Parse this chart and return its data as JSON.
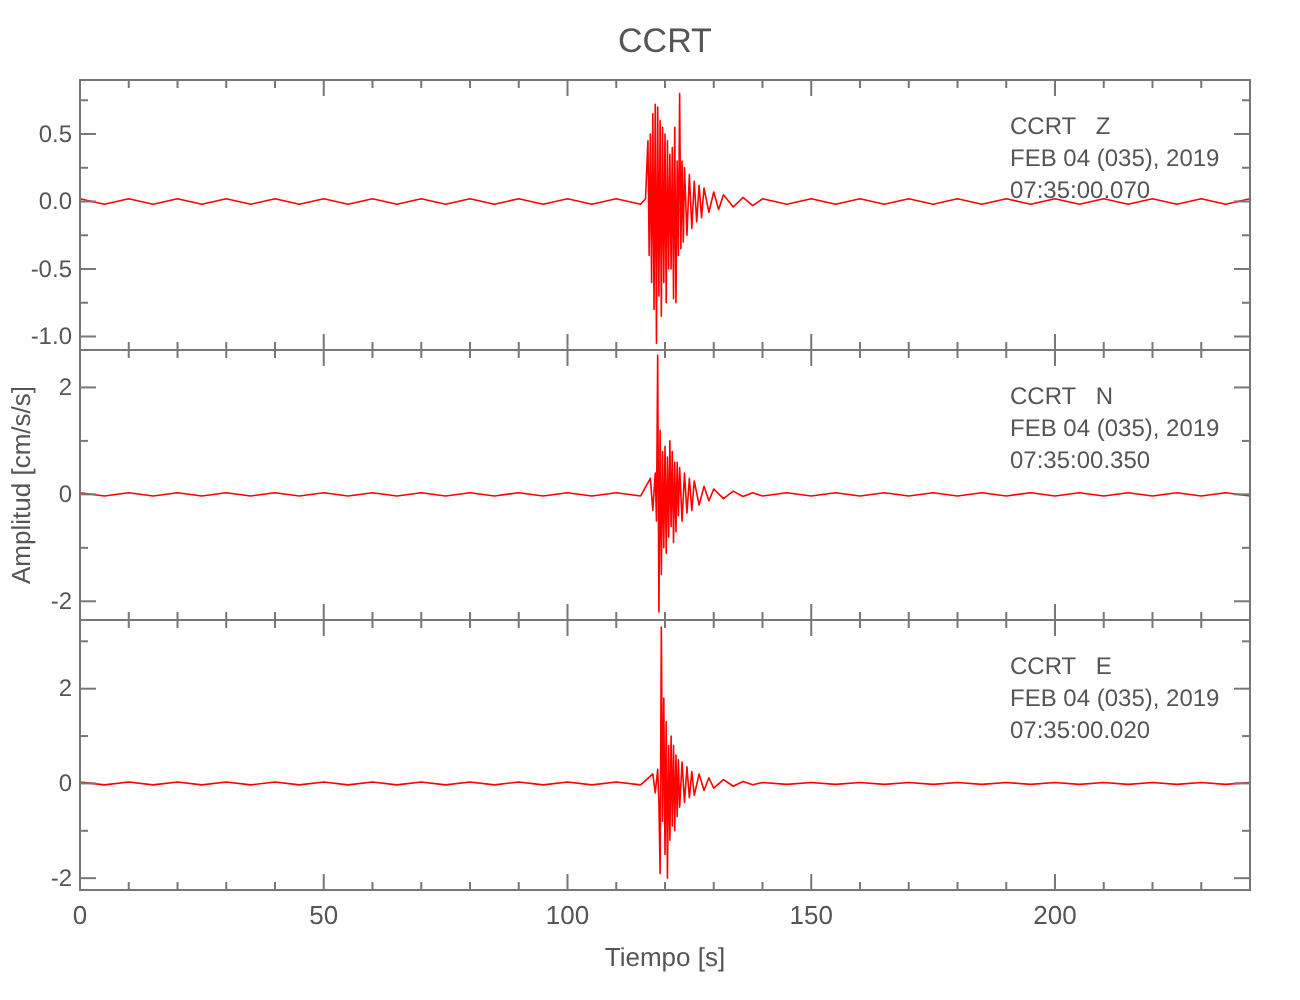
{
  "chart_data": [
    {
      "type": "line",
      "title": "CCRT",
      "annotations": [
        "CCRT   Z",
        "FEB 04 (035), 2019",
        "07:35:00.070"
      ],
      "xlim": [
        0,
        240
      ],
      "xticks": [
        0,
        {
          "value": 10,
          "label": null
        },
        {
          "value": 20,
          "label": null
        },
        {
          "value": 30,
          "label": null
        },
        {
          "value": 40,
          "label": null
        },
        50,
        {
          "value": 60,
          "label": null
        },
        {
          "value": 70,
          "label": null
        },
        {
          "value": 80,
          "label": null
        },
        {
          "value": 90,
          "label": null
        },
        100,
        {
          "value": 110,
          "label": null
        },
        {
          "value": 120,
          "label": null
        },
        {
          "value": 130,
          "label": null
        },
        {
          "value": 140,
          "label": null
        },
        150,
        {
          "value": 160,
          "label": null
        },
        {
          "value": 170,
          "label": null
        },
        {
          "value": 180,
          "label": null
        },
        {
          "value": 190,
          "label": null
        },
        200,
        {
          "value": 210,
          "label": null
        },
        {
          "value": 220,
          "label": null
        },
        {
          "value": 230,
          "label": null
        }
      ],
      "ylim": [
        -1.1,
        0.9
      ],
      "yticks": [
        {
          "value": -1.0,
          "label": "-1.0"
        },
        {
          "value": -0.75,
          "label": null
        },
        {
          "value": -0.5,
          "label": "-0.5"
        },
        {
          "value": -0.25,
          "label": null
        },
        {
          "value": 0,
          "label": "0.0"
        },
        {
          "value": 0.25,
          "label": null
        },
        {
          "value": 0.5,
          "label": "0.5"
        },
        {
          "value": 0.75,
          "label": null
        }
      ],
      "tick_labels": "y",
      "grid": false,
      "line_style": "solid",
      "marker": "none",
      "series": [
        {
          "color": "#ff0000",
          "x": [
            0,
            5,
            10,
            15,
            20,
            25,
            30,
            35,
            40,
            45,
            50,
            55,
            60,
            65,
            70,
            75,
            80,
            85,
            90,
            95,
            100,
            105,
            110,
            115,
            116,
            116.5,
            116.75,
            117,
            117.25,
            117.5,
            117.75,
            118,
            118.25,
            118.5,
            118.75,
            119,
            119.25,
            119.5,
            119.75,
            120,
            120.25,
            120.5,
            120.75,
            121,
            121.25,
            121.5,
            121.75,
            122,
            122.25,
            122.5,
            122.75,
            123,
            123.25,
            123.5,
            123.75,
            124,
            124.5,
            125,
            125.5,
            126,
            126.5,
            127,
            127.5,
            128,
            129,
            130,
            131,
            132,
            134,
            136,
            138,
            140,
            145,
            150,
            155,
            160,
            165,
            170,
            175,
            180,
            185,
            190,
            195,
            200,
            205,
            210,
            215,
            220,
            225,
            230,
            235,
            240
          ],
          "values": [
            0.02,
            -0.02,
            0.02,
            -0.02,
            0.02,
            -0.02,
            0.02,
            -0.02,
            0.02,
            -0.02,
            0.02,
            -0.02,
            0.02,
            -0.02,
            0.02,
            -0.02,
            0.02,
            -0.02,
            0.02,
            -0.02,
            0.02,
            -0.02,
            0.02,
            -0.02,
            0.02,
            0.45,
            -0.4,
            0.5,
            -0.6,
            0.65,
            -0.8,
            0.72,
            -1.05,
            0.7,
            -0.7,
            0.6,
            -0.85,
            0.55,
            -0.6,
            0.5,
            -0.75,
            0.45,
            -0.5,
            0.35,
            -0.5,
            0.4,
            -0.72,
            0.55,
            -0.75,
            0.3,
            -0.4,
            0.8,
            -0.35,
            0.3,
            -0.3,
            0.25,
            -0.25,
            0.2,
            -0.2,
            0.15,
            -0.15,
            0.12,
            -0.12,
            0.1,
            -0.08,
            0.07,
            -0.06,
            0.05,
            -0.04,
            0.03,
            -0.03,
            0.02,
            -0.02,
            0.02,
            -0.02,
            0.02,
            -0.02,
            0.02,
            -0.02,
            0.02,
            -0.02,
            0.02,
            -0.02,
            0.02,
            -0.02,
            0.02,
            -0.02,
            0.02,
            -0.02,
            0.02,
            -0.02,
            0.02
          ]
        }
      ]
    },
    {
      "type": "line",
      "ylabel": "Amplitud [cm/s/s]",
      "annotations": [
        "CCRT   N",
        "FEB 04 (035), 2019",
        "07:35:00.350"
      ],
      "xlim": [
        0,
        240
      ],
      "xticks": [
        0,
        {
          "value": 10,
          "label": null
        },
        {
          "value": 20,
          "label": null
        },
        {
          "value": 30,
          "label": null
        },
        {
          "value": 40,
          "label": null
        },
        50,
        {
          "value": 60,
          "label": null
        },
        {
          "value": 70,
          "label": null
        },
        {
          "value": 80,
          "label": null
        },
        {
          "value": 90,
          "label": null
        },
        100,
        {
          "value": 110,
          "label": null
        },
        {
          "value": 120,
          "label": null
        },
        {
          "value": 130,
          "label": null
        },
        {
          "value": 140,
          "label": null
        },
        150,
        {
          "value": 160,
          "label": null
        },
        {
          "value": 170,
          "label": null
        },
        {
          "value": 180,
          "label": null
        },
        {
          "value": 190,
          "label": null
        },
        200,
        {
          "value": 210,
          "label": null
        },
        {
          "value": 220,
          "label": null
        },
        {
          "value": 230,
          "label": null
        }
      ],
      "ylim": [
        -2.35,
        2.7
      ],
      "yticks": [
        -2,
        {
          "value": -1,
          "label": null
        },
        0,
        {
          "value": 1,
          "label": null
        },
        2
      ],
      "tick_labels": "y",
      "grid": false,
      "line_style": "solid",
      "marker": "none",
      "series": [
        {
          "color": "#ff0000",
          "x": [
            0,
            5,
            10,
            15,
            20,
            25,
            30,
            35,
            40,
            45,
            50,
            55,
            60,
            65,
            70,
            75,
            80,
            85,
            90,
            95,
            100,
            105,
            110,
            115,
            117,
            117.5,
            118,
            118.25,
            118.5,
            118.75,
            119,
            119.25,
            119.5,
            119.75,
            120,
            120.25,
            120.5,
            120.75,
            121,
            121.25,
            121.5,
            121.75,
            122,
            122.25,
            122.5,
            122.75,
            123,
            123.5,
            124,
            124.5,
            125,
            125.5,
            126,
            127,
            128,
            129,
            130,
            132,
            134,
            136,
            138,
            140,
            145,
            150,
            155,
            160,
            165,
            170,
            175,
            180,
            185,
            190,
            195,
            200,
            205,
            210,
            215,
            220,
            225,
            230,
            235,
            240
          ],
          "values": [
            0.03,
            -0.03,
            0.03,
            -0.03,
            0.03,
            -0.03,
            0.03,
            -0.03,
            0.03,
            -0.03,
            0.03,
            -0.03,
            0.03,
            -0.03,
            0.03,
            -0.03,
            0.03,
            -0.03,
            0.03,
            -0.03,
            0.03,
            -0.03,
            0.03,
            -0.03,
            0.3,
            -0.3,
            0.4,
            -0.5,
            2.6,
            -2.2,
            1.2,
            -1.5,
            0.8,
            -1.0,
            0.9,
            -1.1,
            0.7,
            -0.8,
            1.0,
            -0.6,
            0.8,
            -0.9,
            0.6,
            -0.7,
            0.6,
            -0.4,
            0.5,
            -0.5,
            0.4,
            -0.35,
            0.3,
            -0.3,
            0.25,
            -0.2,
            0.15,
            -0.12,
            0.1,
            -0.08,
            0.06,
            -0.04,
            0.03,
            -0.03,
            0.03,
            -0.03,
            0.03,
            -0.03,
            0.03,
            -0.03,
            0.03,
            -0.03,
            0.03,
            -0.03,
            0.03,
            -0.03,
            0.03,
            -0.03,
            0.03,
            -0.03,
            0.03,
            -0.03,
            0.03,
            -0.03
          ]
        }
      ]
    },
    {
      "type": "line",
      "xlabel": "Tiempo [s]",
      "annotations": [
        "CCRT   E",
        "FEB 04 (035), 2019",
        "07:35:00.020"
      ],
      "xlim": [
        0,
        240
      ],
      "xticks": [
        0,
        {
          "value": 10,
          "label": null
        },
        {
          "value": 20,
          "label": null
        },
        {
          "value": 30,
          "label": null
        },
        {
          "value": 40,
          "label": null
        },
        50,
        {
          "value": 60,
          "label": null
        },
        {
          "value": 70,
          "label": null
        },
        {
          "value": 80,
          "label": null
        },
        {
          "value": 90,
          "label": null
        },
        100,
        {
          "value": 110,
          "label": null
        },
        {
          "value": 120,
          "label": null
        },
        {
          "value": 130,
          "label": null
        },
        {
          "value": 140,
          "label": null
        },
        150,
        {
          "value": 160,
          "label": null
        },
        {
          "value": 170,
          "label": null
        },
        {
          "value": 180,
          "label": null
        },
        {
          "value": 190,
          "label": null
        },
        200,
        {
          "value": 210,
          "label": null
        },
        {
          "value": 220,
          "label": null
        },
        {
          "value": 230,
          "label": null
        }
      ],
      "ylim": [
        -2.25,
        3.45
      ],
      "yticks": [
        -2,
        {
          "value": -1,
          "label": null
        },
        0,
        {
          "value": 1,
          "label": null
        },
        2,
        {
          "value": 3,
          "label": null
        }
      ],
      "grid": false,
      "line_style": "solid",
      "marker": "none",
      "series": [
        {
          "color": "#ff0000",
          "x": [
            0,
            5,
            10,
            15,
            20,
            25,
            30,
            35,
            40,
            45,
            50,
            55,
            60,
            65,
            70,
            75,
            80,
            85,
            90,
            95,
            100,
            105,
            110,
            115,
            117.5,
            118,
            118.5,
            118.75,
            119,
            119.25,
            119.5,
            119.75,
            120,
            120.25,
            120.5,
            120.75,
            121,
            121.25,
            121.5,
            121.75,
            122,
            122.25,
            122.5,
            122.75,
            123,
            123.5,
            124,
            124.5,
            125,
            125.5,
            126,
            127,
            128,
            129,
            130,
            132,
            134,
            136,
            138,
            140,
            145,
            150,
            155,
            160,
            165,
            170,
            175,
            180,
            185,
            190,
            195,
            200,
            205,
            210,
            215,
            220,
            225,
            230,
            235,
            240
          ],
          "values": [
            0.03,
            -0.03,
            0.03,
            -0.03,
            0.03,
            -0.03,
            0.03,
            -0.03,
            0.03,
            -0.03,
            0.03,
            -0.03,
            0.03,
            -0.03,
            0.03,
            -0.03,
            0.03,
            -0.03,
            0.03,
            -0.03,
            0.03,
            -0.03,
            0.03,
            -0.03,
            0.2,
            -0.2,
            0.3,
            -0.4,
            -1.9,
            3.3,
            -0.8,
            1.8,
            -1.5,
            1.3,
            -2.0,
            0.8,
            -1.2,
            1.0,
            -0.9,
            0.8,
            -1.0,
            0.6,
            -0.7,
            0.5,
            -0.5,
            0.45,
            -0.4,
            0.35,
            -0.3,
            0.25,
            -0.25,
            0.2,
            -0.15,
            0.12,
            -0.1,
            0.08,
            -0.06,
            0.04,
            -0.03,
            0.02,
            -0.02,
            0.02,
            -0.02,
            0.02,
            -0.02,
            0.02,
            -0.02,
            0.02,
            -0.02,
            0.02,
            -0.02,
            0.02,
            -0.02,
            0.02,
            -0.02,
            0.02,
            -0.02,
            0.02,
            -0.02,
            0.02
          ]
        }
      ]
    }
  ]
}
